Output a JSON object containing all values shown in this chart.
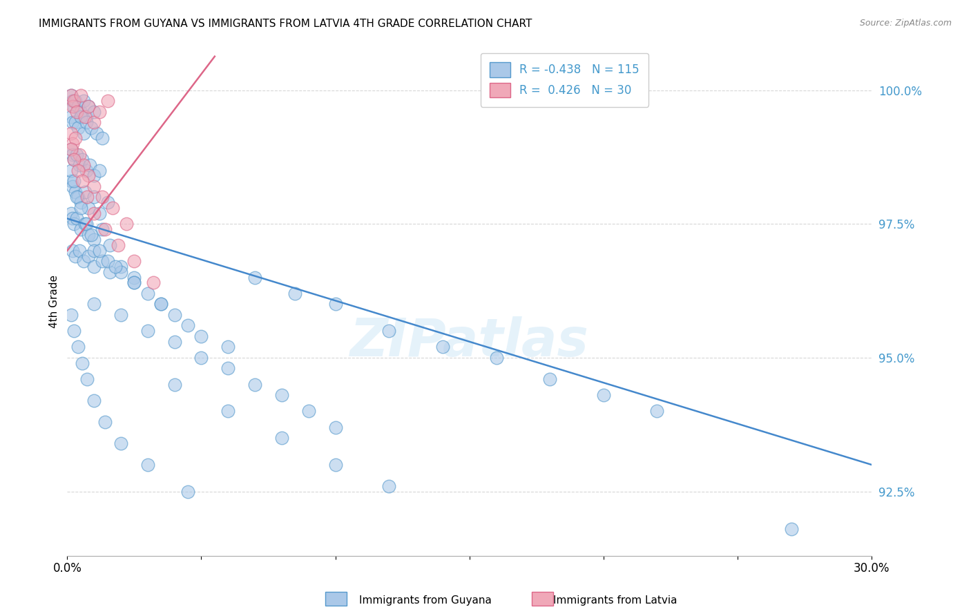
{
  "title": "IMMIGRANTS FROM GUYANA VS IMMIGRANTS FROM LATVIA 4TH GRADE CORRELATION CHART",
  "source": "Source: ZipAtlas.com",
  "ylabel": "4th Grade",
  "xlim": [
    0.0,
    30.0
  ],
  "ylim": [
    91.3,
    100.8
  ],
  "yticks": [
    92.5,
    95.0,
    97.5,
    100.0
  ],
  "ytick_labels": [
    "92.5%",
    "95.0%",
    "97.5%",
    "100.0%"
  ],
  "xtick_labels_left": "0.0%",
  "xtick_labels_right": "30.0%",
  "guyana_R": -0.438,
  "guyana_N": 115,
  "latvia_R": 0.426,
  "latvia_N": 30,
  "guyana_color": "#aac8e8",
  "latvia_color": "#f0a8b8",
  "guyana_edge_color": "#5599cc",
  "latvia_edge_color": "#dd6688",
  "guyana_line_color": "#4488cc",
  "latvia_line_color": "#dd6688",
  "watermark": "ZIPatlas",
  "title_fontsize": 11,
  "tick_color": "#4499cc",
  "legend_label1": "R = -0.438   N = 115",
  "legend_label2": "R =  0.426   N = 30",
  "bottom_label1": "Immigrants from Guyana",
  "bottom_label2": "Immigrants from Latvia"
}
